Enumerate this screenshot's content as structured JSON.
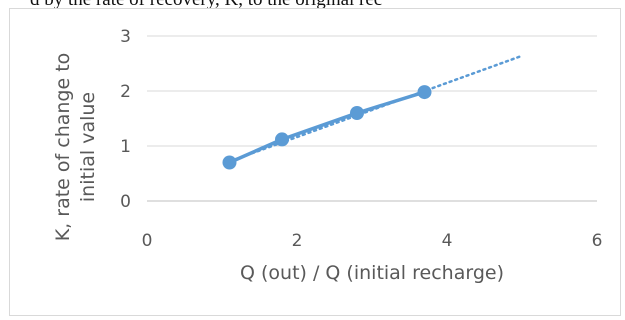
{
  "caption": "d by the rate of recovery, K, to the original rec",
  "chart_data": {
    "type": "scatter",
    "title": "",
    "xlabel": "Q (out) / Q (initial recharge)",
    "ylabel_lines": [
      "K, rate of change to",
      "initial value"
    ],
    "xlim": [
      0,
      6
    ],
    "ylim": [
      0,
      3
    ],
    "xticks": [
      0,
      2,
      4,
      6
    ],
    "yticks": [
      0,
      1,
      2,
      3
    ],
    "grid": "horizontal",
    "legend": "none",
    "series": [
      {
        "x": [
          1.1,
          1.8,
          2.8,
          3.7
        ],
        "y": [
          0.7,
          1.12,
          1.6,
          1.98
        ],
        "style": "line-with-markers",
        "color": "#5b9bd5"
      }
    ],
    "trendline": {
      "style": "dotted",
      "color": "#5b9bd5",
      "x": [
        1.1,
        5.0
      ],
      "y": [
        0.72,
        2.64
      ]
    }
  }
}
